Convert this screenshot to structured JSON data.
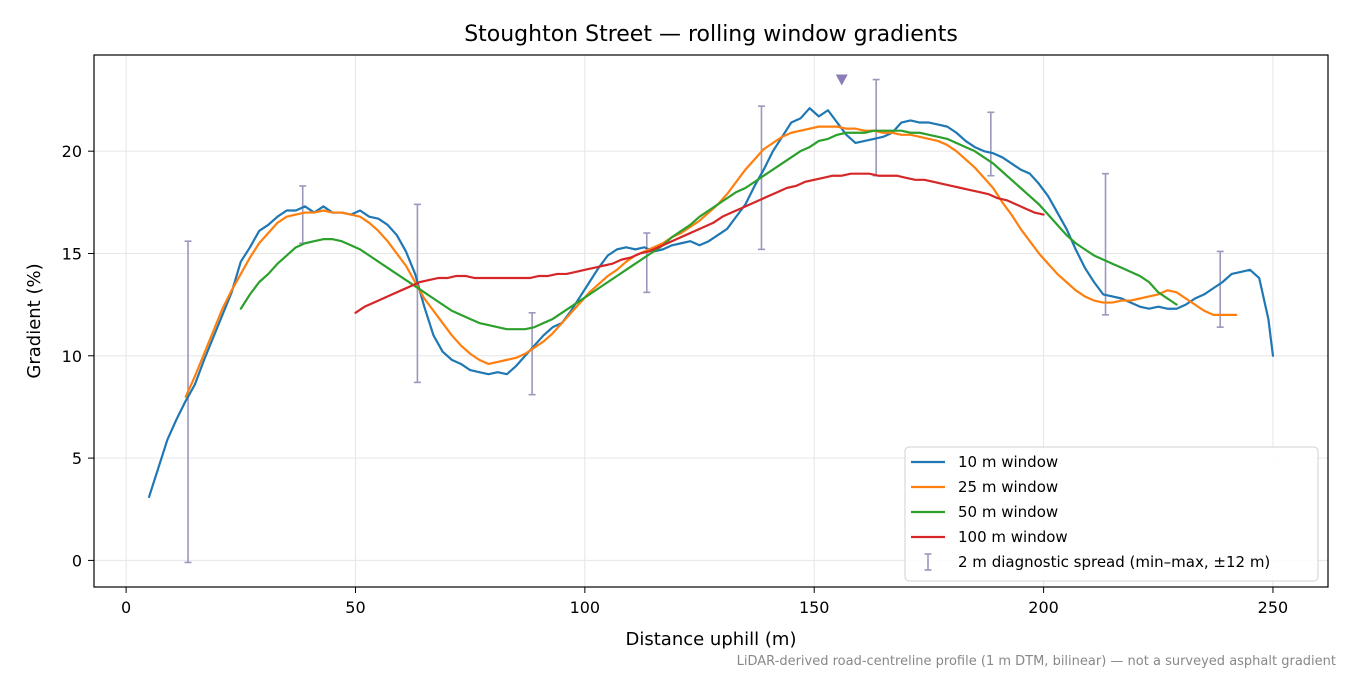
{
  "chart_data": {
    "type": "line",
    "title": "Stoughton Street — rolling window gradients",
    "xlabel": "Distance uphill (m)",
    "ylabel": "Gradient (%)",
    "xlim": [
      -7,
      262
    ],
    "ylim": [
      -1.3,
      24.7
    ],
    "xticks": [
      0,
      50,
      100,
      150,
      200,
      250
    ],
    "yticks": [
      0,
      5,
      10,
      15,
      20
    ],
    "grid": true,
    "legend_position": "lower-right",
    "footnote": "LiDAR-derived road-centreline profile (1 m DTM, bilinear) — not a surveyed asphalt gradient",
    "series": [
      {
        "name": "10 m window",
        "color": "#1f77b4",
        "x": [
          5,
          7,
          9,
          11,
          13,
          15,
          17,
          19,
          21,
          23,
          25,
          27,
          29,
          31,
          33,
          35,
          37,
          39,
          41,
          43,
          45,
          47,
          49,
          51,
          53,
          55,
          57,
          59,
          61,
          63,
          65,
          67,
          69,
          71,
          73,
          75,
          77,
          79,
          81,
          83,
          85,
          87,
          89,
          91,
          93,
          95,
          97,
          99,
          101,
          103,
          105,
          107,
          109,
          111,
          113,
          115,
          117,
          119,
          121,
          123,
          125,
          127,
          129,
          131,
          133,
          135,
          137,
          139,
          141,
          143,
          145,
          147,
          149,
          151,
          153,
          155,
          157,
          159,
          161,
          163,
          165,
          167,
          169,
          171,
          173,
          175,
          177,
          179,
          181,
          183,
          185,
          187,
          189,
          191,
          193,
          195,
          197,
          199,
          201,
          203,
          205,
          207,
          209,
          211,
          213,
          215,
          217,
          219,
          221,
          223,
          225,
          227,
          229,
          231,
          233,
          235,
          237,
          239,
          241,
          243,
          245,
          247,
          249,
          250
        ],
        "y": [
          3.1,
          4.5,
          5.9,
          6.9,
          7.8,
          8.6,
          9.8,
          10.9,
          12.0,
          13.1,
          14.6,
          15.3,
          16.1,
          16.4,
          16.8,
          17.1,
          17.1,
          17.3,
          17.0,
          17.3,
          17.0,
          17.0,
          16.9,
          17.1,
          16.8,
          16.7,
          16.4,
          15.9,
          15.1,
          14.0,
          12.4,
          11.0,
          10.2,
          9.8,
          9.6,
          9.3,
          9.2,
          9.1,
          9.2,
          9.1,
          9.5,
          10.0,
          10.5,
          11.0,
          11.4,
          11.6,
          12.2,
          12.9,
          13.6,
          14.3,
          14.9,
          15.2,
          15.3,
          15.2,
          15.3,
          15.1,
          15.2,
          15.4,
          15.5,
          15.6,
          15.4,
          15.6,
          15.9,
          16.2,
          16.8,
          17.4,
          18.3,
          19.1,
          20.0,
          20.7,
          21.4,
          21.6,
          22.1,
          21.7,
          22.0,
          21.4,
          20.8,
          20.4,
          20.5,
          20.6,
          20.7,
          20.9,
          21.4,
          21.5,
          21.4,
          21.4,
          21.3,
          21.2,
          20.9,
          20.5,
          20.2,
          20.0,
          19.9,
          19.7,
          19.4,
          19.1,
          18.9,
          18.4,
          17.8,
          17.0,
          16.2,
          15.2,
          14.3,
          13.6,
          13.0,
          12.9,
          12.8,
          12.6,
          12.4,
          12.3,
          12.4,
          12.3,
          12.3,
          12.5,
          12.8,
          13.0,
          13.3,
          13.6,
          14.0,
          14.1,
          14.2,
          13.8,
          11.8,
          10.0
        ]
      },
      {
        "name": "25 m window",
        "color": "#ff7f0e",
        "x": [
          13,
          15,
          17,
          19,
          21,
          23,
          25,
          27,
          29,
          31,
          33,
          35,
          37,
          39,
          41,
          43,
          45,
          47,
          49,
          51,
          53,
          55,
          57,
          59,
          61,
          63,
          65,
          67,
          69,
          71,
          73,
          75,
          77,
          79,
          81,
          83,
          85,
          87,
          89,
          91,
          93,
          95,
          97,
          99,
          101,
          103,
          105,
          107,
          109,
          111,
          113,
          115,
          117,
          119,
          121,
          123,
          125,
          127,
          129,
          131,
          133,
          135,
          137,
          139,
          141,
          143,
          145,
          147,
          149,
          151,
          153,
          155,
          157,
          159,
          161,
          163,
          165,
          167,
          169,
          171,
          173,
          175,
          177,
          179,
          181,
          183,
          185,
          187,
          189,
          191,
          193,
          195,
          197,
          199,
          201,
          203,
          205,
          207,
          209,
          211,
          213,
          215,
          217,
          219,
          221,
          223,
          225,
          227,
          229,
          231,
          233,
          235,
          237,
          239,
          241,
          242
        ],
        "y": [
          8.0,
          9.0,
          10.1,
          11.2,
          12.3,
          13.2,
          14.0,
          14.8,
          15.5,
          16.0,
          16.5,
          16.8,
          16.9,
          17.0,
          17.0,
          17.1,
          17.0,
          17.0,
          16.9,
          16.8,
          16.5,
          16.1,
          15.6,
          15.0,
          14.4,
          13.6,
          12.8,
          12.2,
          11.6,
          11.0,
          10.5,
          10.1,
          9.8,
          9.6,
          9.7,
          9.8,
          9.9,
          10.1,
          10.4,
          10.7,
          11.1,
          11.6,
          12.1,
          12.6,
          13.1,
          13.5,
          13.9,
          14.2,
          14.6,
          14.9,
          15.1,
          15.3,
          15.5,
          15.8,
          16.0,
          16.3,
          16.6,
          17.0,
          17.4,
          17.9,
          18.5,
          19.1,
          19.6,
          20.1,
          20.4,
          20.7,
          20.9,
          21.0,
          21.1,
          21.2,
          21.2,
          21.2,
          21.1,
          21.1,
          21.0,
          21.0,
          20.9,
          20.9,
          20.8,
          20.8,
          20.7,
          20.6,
          20.5,
          20.3,
          20.0,
          19.6,
          19.2,
          18.7,
          18.2,
          17.5,
          16.9,
          16.2,
          15.6,
          15.0,
          14.5,
          14.0,
          13.6,
          13.2,
          12.9,
          12.7,
          12.6,
          12.6,
          12.7,
          12.7,
          12.8,
          12.9,
          13.0,
          13.2,
          13.1,
          12.8,
          12.5,
          12.2,
          12.0,
          12.0,
          12.0,
          12.0
        ]
      },
      {
        "name": "50 m window",
        "color": "#2ca02c",
        "x": [
          25,
          27,
          29,
          31,
          33,
          35,
          37,
          39,
          41,
          43,
          45,
          47,
          49,
          51,
          53,
          55,
          57,
          59,
          61,
          63,
          65,
          67,
          69,
          71,
          73,
          75,
          77,
          79,
          81,
          83,
          85,
          87,
          89,
          91,
          93,
          95,
          97,
          99,
          101,
          103,
          105,
          107,
          109,
          111,
          113,
          115,
          117,
          119,
          121,
          123,
          125,
          127,
          129,
          131,
          133,
          135,
          137,
          139,
          141,
          143,
          145,
          147,
          149,
          151,
          153,
          155,
          157,
          159,
          161,
          163,
          165,
          167,
          169,
          171,
          173,
          175,
          177,
          179,
          181,
          183,
          185,
          187,
          189,
          191,
          193,
          195,
          197,
          199,
          201,
          203,
          205,
          207,
          209,
          211,
          213,
          215,
          217,
          219,
          221,
          223,
          225,
          227,
          229
        ],
        "y": [
          12.3,
          13.0,
          13.6,
          14.0,
          14.5,
          14.9,
          15.3,
          15.5,
          15.6,
          15.7,
          15.7,
          15.6,
          15.4,
          15.2,
          14.9,
          14.6,
          14.3,
          14.0,
          13.7,
          13.4,
          13.1,
          12.8,
          12.5,
          12.2,
          12.0,
          11.8,
          11.6,
          11.5,
          11.4,
          11.3,
          11.3,
          11.3,
          11.4,
          11.6,
          11.8,
          12.1,
          12.4,
          12.7,
          13.0,
          13.3,
          13.6,
          13.9,
          14.2,
          14.5,
          14.8,
          15.1,
          15.4,
          15.8,
          16.1,
          16.4,
          16.8,
          17.1,
          17.4,
          17.7,
          18.0,
          18.2,
          18.5,
          18.8,
          19.1,
          19.4,
          19.7,
          20.0,
          20.2,
          20.5,
          20.6,
          20.8,
          20.9,
          20.9,
          20.9,
          21.0,
          21.0,
          21.0,
          21.0,
          20.9,
          20.9,
          20.8,
          20.7,
          20.6,
          20.4,
          20.2,
          20.0,
          19.7,
          19.4,
          19.0,
          18.6,
          18.2,
          17.8,
          17.4,
          16.9,
          16.4,
          15.9,
          15.5,
          15.2,
          14.9,
          14.7,
          14.5,
          14.3,
          14.1,
          13.9,
          13.6,
          13.1,
          12.8,
          12.5
        ]
      },
      {
        "name": "100 m window",
        "color": "#d62728",
        "x": [
          50,
          52,
          54,
          56,
          58,
          60,
          62,
          64,
          66,
          68,
          70,
          72,
          74,
          76,
          78,
          80,
          82,
          84,
          86,
          88,
          90,
          92,
          94,
          96,
          98,
          100,
          102,
          104,
          106,
          108,
          110,
          112,
          114,
          116,
          118,
          120,
          122,
          124,
          126,
          128,
          130,
          132,
          134,
          136,
          138,
          140,
          142,
          144,
          146,
          148,
          150,
          152,
          154,
          156,
          158,
          160,
          162,
          164,
          166,
          168,
          170,
          172,
          174,
          176,
          178,
          180,
          182,
          184,
          186,
          188,
          190,
          192,
          194,
          196,
          198,
          200
        ],
        "y": [
          12.1,
          12.4,
          12.6,
          12.8,
          13.0,
          13.2,
          13.4,
          13.6,
          13.7,
          13.8,
          13.8,
          13.9,
          13.9,
          13.8,
          13.8,
          13.8,
          13.8,
          13.8,
          13.8,
          13.8,
          13.9,
          13.9,
          14.0,
          14.0,
          14.1,
          14.2,
          14.3,
          14.4,
          14.5,
          14.7,
          14.8,
          15.0,
          15.1,
          15.3,
          15.5,
          15.7,
          15.9,
          16.1,
          16.3,
          16.5,
          16.8,
          17.0,
          17.2,
          17.4,
          17.6,
          17.8,
          18.0,
          18.2,
          18.3,
          18.5,
          18.6,
          18.7,
          18.8,
          18.8,
          18.9,
          18.9,
          18.9,
          18.8,
          18.8,
          18.8,
          18.7,
          18.6,
          18.6,
          18.5,
          18.4,
          18.3,
          18.2,
          18.1,
          18.0,
          17.9,
          17.7,
          17.6,
          17.4,
          17.2,
          17.0,
          16.9
        ]
      }
    ],
    "errorbars": {
      "name": "2 m diagnostic spread (min–max, ±12 m)",
      "color": "#9b97bd",
      "points": [
        {
          "x": 13.5,
          "low": -0.1,
          "high": 15.6
        },
        {
          "x": 38.5,
          "low": 15.5,
          "high": 18.3
        },
        {
          "x": 63.5,
          "low": 8.7,
          "high": 17.4
        },
        {
          "x": 88.5,
          "low": 8.1,
          "high": 12.1
        },
        {
          "x": 113.5,
          "low": 13.1,
          "high": 16.0
        },
        {
          "x": 138.5,
          "low": 15.2,
          "high": 22.2
        },
        {
          "x": 163.5,
          "low": 18.8,
          "high": 23.5
        },
        {
          "x": 188.5,
          "low": 18.8,
          "high": 21.9
        },
        {
          "x": 213.5,
          "low": 12.0,
          "high": 18.9
        },
        {
          "x": 238.5,
          "low": 11.4,
          "high": 15.1
        }
      ]
    },
    "marker": {
      "x": 156,
      "y": 23.5,
      "color": "#8e7cb8",
      "shape": "triangle-down"
    }
  }
}
